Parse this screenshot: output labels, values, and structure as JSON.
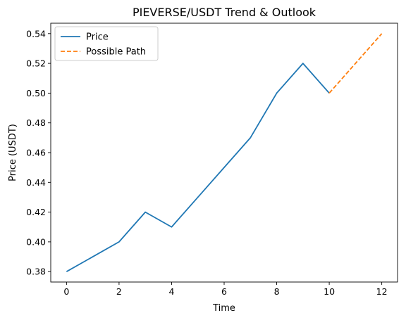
{
  "chart_data": {
    "type": "line",
    "title": "PIEVERSE/USDT Trend & Outlook",
    "xlabel": "Time",
    "ylabel": "Price (USDT)",
    "xlim": [
      -0.6,
      12.6
    ],
    "ylim": [
      0.373,
      0.547
    ],
    "xticks": [
      0,
      2,
      4,
      6,
      8,
      10,
      12
    ],
    "xtick_labels": [
      "0",
      "2",
      "4",
      "6",
      "8",
      "10",
      "12"
    ],
    "yticks": [
      0.38,
      0.4,
      0.42,
      0.44,
      0.46,
      0.48,
      0.5,
      0.52,
      0.54
    ],
    "ytick_labels": [
      "0.38",
      "0.40",
      "0.42",
      "0.44",
      "0.46",
      "0.48",
      "0.50",
      "0.52",
      "0.54"
    ],
    "grid": false,
    "legend_position": "top-left",
    "series": [
      {
        "name": "Price",
        "color": "#1f77b4",
        "style": "solid",
        "x": [
          0,
          1,
          2,
          3,
          4,
          5,
          6,
          7,
          8,
          9,
          10
        ],
        "y": [
          0.38,
          0.39,
          0.4,
          0.42,
          0.41,
          0.43,
          0.45,
          0.47,
          0.5,
          0.52,
          0.5
        ]
      },
      {
        "name": "Possible Path",
        "color": "#ff7f0e",
        "style": "dashed",
        "x": [
          10,
          11,
          12
        ],
        "y": [
          0.5,
          0.52,
          0.54
        ]
      }
    ]
  }
}
